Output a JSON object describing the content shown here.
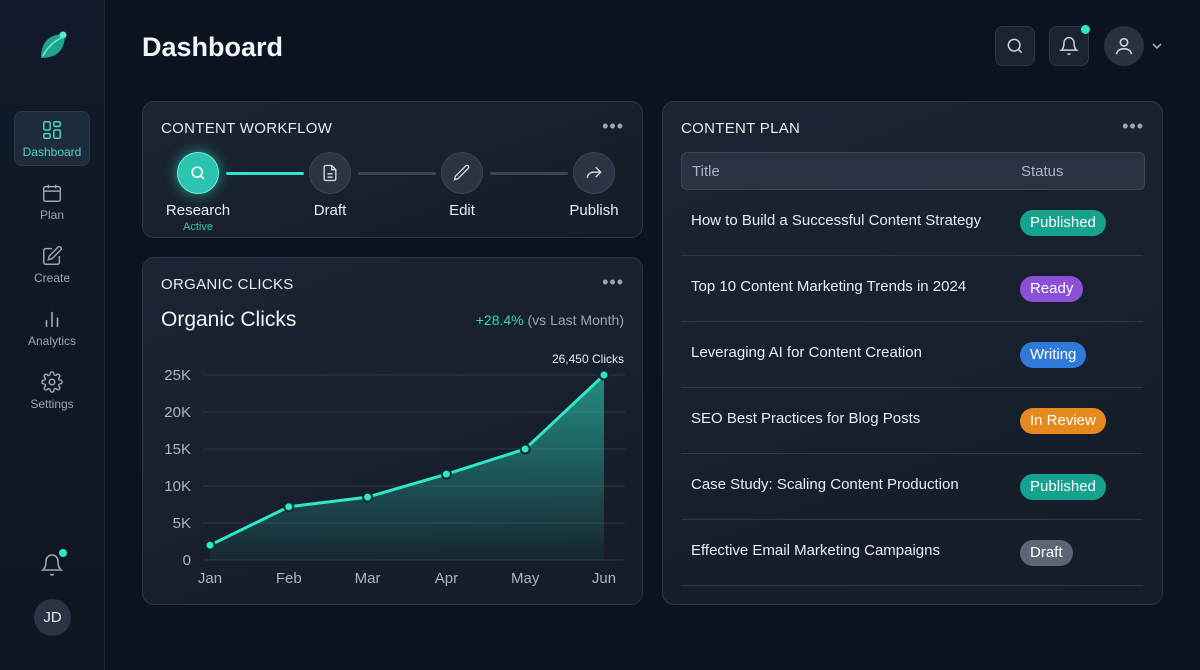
{
  "app": {
    "page_title": "Dashboard",
    "avatar_initials": "JD"
  },
  "sidebar": {
    "items": [
      {
        "label": "Dashboard",
        "icon": "grid-icon",
        "active": true
      },
      {
        "label": "Plan",
        "icon": "calendar-icon"
      },
      {
        "label": "Create",
        "icon": "edit-icon"
      },
      {
        "label": "Analytics",
        "icon": "bars-icon"
      },
      {
        "label": "Settings",
        "icon": "gear-icon"
      }
    ]
  },
  "workflow": {
    "title": "CONTENT WORKFLOW",
    "steps": [
      {
        "label": "Research",
        "status": "Active",
        "icon": "search-icon"
      },
      {
        "label": "Draft",
        "icon": "document-icon"
      },
      {
        "label": "Edit",
        "icon": "pencil-icon"
      },
      {
        "label": "Publish",
        "icon": "share-icon"
      }
    ]
  },
  "organic": {
    "title": "ORGANIC CLICKS",
    "heading": "Organic Clicks",
    "change": "+28.4%",
    "change_note": "(vs Last Month)"
  },
  "chart_data": {
    "type": "area",
    "categories": [
      "Jan",
      "Feb",
      "Mar",
      "Apr",
      "May",
      "Jun"
    ],
    "values": [
      2000,
      7200,
      8500,
      11600,
      15000,
      26450
    ],
    "ylim": [
      0,
      25000
    ],
    "yticks": [
      "0",
      "5K",
      "10K",
      "15K",
      "20K",
      "25K"
    ],
    "annotation": "26,450 Clicks",
    "grid": true
  },
  "content_plan": {
    "title": "CONTENT PLAN",
    "columns": [
      "Title",
      "Status"
    ],
    "rows": [
      {
        "title": "How to Build a Successful Content Strategy",
        "status": "Published",
        "color": "#17a18f"
      },
      {
        "title": "Top 10 Content Marketing Trends in 2024",
        "status": "Ready",
        "color": "#8b4fd8"
      },
      {
        "title": "Leveraging AI for Content Creation",
        "status": "Writing",
        "color": "#2f7ad8"
      },
      {
        "title": "SEO Best Practices for Blog Posts",
        "status": "In Review",
        "color": "#e58a1c"
      },
      {
        "title": "Case Study: Scaling Content Production",
        "status": "Published",
        "color": "#17a18f"
      },
      {
        "title": "Effective Email Marketing Campaigns",
        "status": "Draft",
        "color": "#5b6573"
      }
    ]
  },
  "colors": {
    "accent": "#2ee6c8",
    "background": "#0b1220"
  }
}
